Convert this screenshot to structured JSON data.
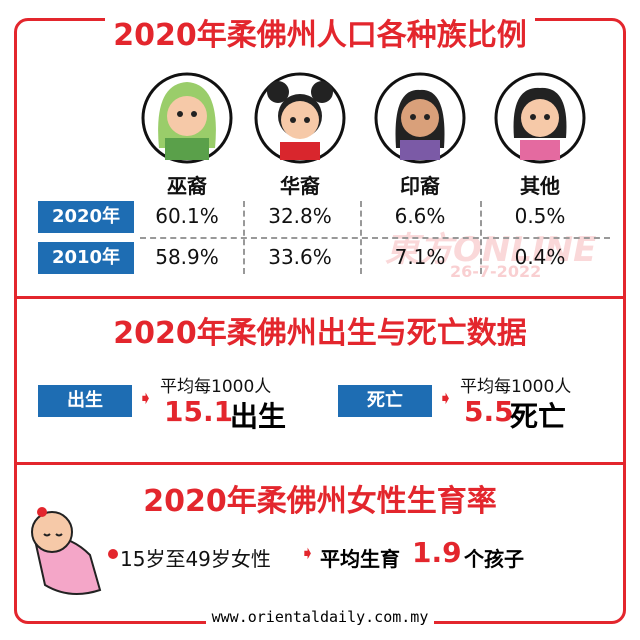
{
  "population": {
    "title": "2020年柔佛州人口各种族比例",
    "groups": [
      "巫裔",
      "华裔",
      "印裔",
      "其他"
    ],
    "rows": [
      {
        "label": "2020年",
        "values": [
          "60.1%",
          "32.8%",
          "6.6%",
          "0.5%"
        ]
      },
      {
        "label": "2010年",
        "values": [
          "58.9%",
          "33.6%",
          "7.1%",
          "0.4%"
        ]
      }
    ]
  },
  "watermark": {
    "brand": "東方ONLINE",
    "date": "26-7-2022"
  },
  "births_deaths": {
    "title": "2020年柔佛州出生与死亡数据",
    "items": [
      {
        "label": "出生",
        "note": "平均每1000人",
        "value": "15.1",
        "unit": "出生"
      },
      {
        "label": "死亡",
        "note": "平均每1000人",
        "value": "5.5",
        "unit": "死亡"
      }
    ]
  },
  "fertility": {
    "title": "2020年柔佛州女性生育率",
    "group": "15岁至49岁女性",
    "lead": "平均生育",
    "value": "1.9",
    "unit": "个孩子"
  },
  "footer": "www.orientaldaily.com.my"
}
